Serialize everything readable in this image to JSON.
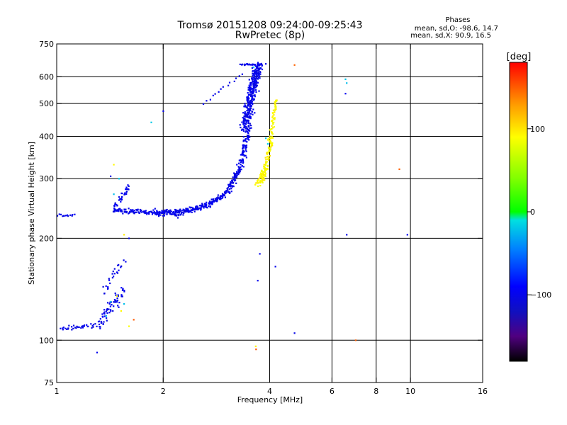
{
  "chart_data": {
    "type": "scatter",
    "title": "Tromsø 20151208 09:24:00-09:25:43",
    "subtitle": "RwPretec (8p)",
    "phases": {
      "heading": "Phases",
      "o_line": "mean, sd,O: -98.6, 14.7",
      "x_line": "mean, sd,X:  90.9, 16.5"
    },
    "xlabel": "Frequency [MHz]",
    "ylabel": "Stationary phase Virtual Height [km]",
    "x_scale": "log",
    "y_scale": "log",
    "xlim": [
      1,
      16
    ],
    "ylim": [
      75,
      750
    ],
    "x_ticks": [
      {
        "value": 1,
        "label": "1"
      },
      {
        "value": 2,
        "label": "2"
      },
      {
        "value": 4,
        "label": "4"
      },
      {
        "value": 6,
        "label": "6"
      },
      {
        "value": 8,
        "label": "8"
      },
      {
        "value": 10,
        "label": "10"
      },
      {
        "value": 16,
        "label": "16"
      }
    ],
    "y_ticks": [
      {
        "value": 75,
        "label": "75"
      },
      {
        "value": 100,
        "label": "100"
      },
      {
        "value": 200,
        "label": "200"
      },
      {
        "value": 300,
        "label": "300"
      },
      {
        "value": 400,
        "label": "400"
      },
      {
        "value": 500,
        "label": "500"
      },
      {
        "value": 600,
        "label": "600"
      },
      {
        "value": 750,
        "label": "750"
      }
    ],
    "x_grid": [
      2,
      4,
      6,
      8,
      10
    ],
    "y_grid": [
      100,
      200,
      300,
      400,
      500,
      600
    ],
    "grid": true,
    "colorbar": {
      "label": "[deg]",
      "range": [
        -180,
        180
      ],
      "ticks": [
        {
          "value": 100,
          "label": "100"
        },
        {
          "value": 0,
          "label": "0"
        },
        {
          "value": -100,
          "label": "−100"
        }
      ],
      "stops": [
        {
          "value": -180,
          "color": "#000000"
        },
        {
          "value": -150,
          "color": "#500080"
        },
        {
          "value": -120,
          "color": "#1010c0"
        },
        {
          "value": -90,
          "color": "#0000ff"
        },
        {
          "value": -45,
          "color": "#0080ff"
        },
        {
          "value": -10,
          "color": "#00e0e0"
        },
        {
          "value": 0,
          "color": "#00ff00"
        },
        {
          "value": 40,
          "color": "#80ff00"
        },
        {
          "value": 90,
          "color": "#ffff00"
        },
        {
          "value": 130,
          "color": "#ff9900"
        },
        {
          "value": 180,
          "color": "#ff0000"
        }
      ]
    },
    "series": [
      {
        "segments": [
          {
            "f": [
              1.0,
              1.12
            ],
            "h": [
              234,
              234
            ],
            "n": 14,
            "jf": 0.01,
            "jh": 3
          },
          {
            "f": [
              1.03,
              1.35
            ],
            "h": [
              108,
              112
            ],
            "n": 40,
            "jf": 0.015,
            "jh": 2.5
          },
          {
            "f": [
              1.32,
              1.55
            ],
            "h": [
              112,
              140
            ],
            "n": 60,
            "jf": 0.035,
            "jh": 9
          },
          {
            "f": [
              1.35,
              1.55
            ],
            "h": [
              140,
              170
            ],
            "n": 25,
            "jf": 0.03,
            "jh": 8
          },
          {
            "f": [
              1.45,
              1.6
            ],
            "h": [
              245,
              285
            ],
            "n": 35,
            "jf": 0.02,
            "jh": 12
          },
          {
            "f": [
              1.45,
              1.9
            ],
            "h": [
              242,
              238
            ],
            "n": 90,
            "jf": 0.02,
            "jh": 5
          },
          {
            "f": [
              1.9,
              2.3
            ],
            "h": [
              238,
              240
            ],
            "n": 110,
            "jf": 0.02,
            "jh": 8
          },
          {
            "f": [
              2.3,
              2.7
            ],
            "h": [
              240,
              252
            ],
            "n": 90,
            "jf": 0.02,
            "jh": 7
          },
          {
            "f": [
              2.7,
              3.05
            ],
            "h": [
              252,
              275
            ],
            "n": 80,
            "jf": 0.02,
            "jh": 7
          },
          {
            "f": [
              3.05,
              3.3
            ],
            "h": [
              275,
              320
            ],
            "n": 70,
            "jf": 0.025,
            "jh": 9
          },
          {
            "f": [
              3.3,
              3.5
            ],
            "h": [
              320,
              420
            ],
            "n": 90,
            "jf": 0.03,
            "jh": 14
          },
          {
            "f": [
              3.4,
              3.72
            ],
            "h": [
              420,
              650
            ],
            "n": 340,
            "jf": 0.05,
            "jh": 20
          },
          {
            "f": [
              2.6,
              3.35
            ],
            "h": [
              500,
              610
            ],
            "n": 14,
            "jf": 0.02,
            "jh": 6
          },
          {
            "f": [
              3.3,
              3.8
            ],
            "h": [
              652,
              652
            ],
            "n": 30,
            "jf": 0.02,
            "jh": 4
          }
        ],
        "points": [
          [
            2.0,
            475
          ],
          [
            1.6,
            200
          ],
          [
            2.2,
            230
          ],
          [
            3.75,
            180
          ],
          [
            3.7,
            150
          ],
          [
            4.15,
            165
          ],
          [
            4.7,
            105
          ],
          [
            6.6,
            205
          ],
          [
            6.55,
            535
          ],
          [
            9.8,
            205
          ],
          [
            1.3,
            92
          ],
          [
            1.42,
            305
          ],
          [
            3.9,
            655
          ]
        ],
        "phase": -100,
        "phase_sd": 14
      },
      {
        "segments": [
          {
            "f": [
              3.7,
              3.9
            ],
            "h": [
              288,
              320
            ],
            "n": 60,
            "jf": 0.03,
            "jh": 5
          },
          {
            "f": [
              3.85,
              4.05
            ],
            "h": [
              300,
              390
            ],
            "n": 70,
            "jf": 0.025,
            "jh": 10
          },
          {
            "f": [
              4.0,
              4.18
            ],
            "h": [
              380,
              520
            ],
            "n": 60,
            "jf": 0.02,
            "jh": 14
          }
        ],
        "points": [
          [
            1.45,
            330
          ],
          [
            1.55,
            205
          ],
          [
            1.52,
            122
          ],
          [
            1.6,
            110
          ],
          [
            1.48,
            135
          ],
          [
            3.65,
            96
          ]
        ],
        "phase": 92,
        "phase_sd": 16
      },
      {
        "segments": [],
        "points": [
          [
            1.42,
            130
          ],
          [
            1.55,
            128
          ],
          [
            1.5,
            300
          ],
          [
            1.45,
            270
          ],
          [
            1.85,
            440
          ],
          [
            6.55,
            590
          ],
          [
            6.6,
            575
          ],
          [
            3.95,
            380
          ],
          [
            3.9,
            395
          ],
          [
            3.6,
            640
          ],
          [
            1.38,
            118
          ]
        ],
        "phase": -20,
        "phase_sd": 10
      },
      {
        "segments": [],
        "points": [
          [
            4.7,
            650
          ],
          [
            9.3,
            320
          ],
          [
            7.0,
            100
          ],
          [
            3.66,
            94
          ],
          [
            1.65,
            115
          ]
        ],
        "phase": 150,
        "phase_sd": 15
      }
    ]
  }
}
